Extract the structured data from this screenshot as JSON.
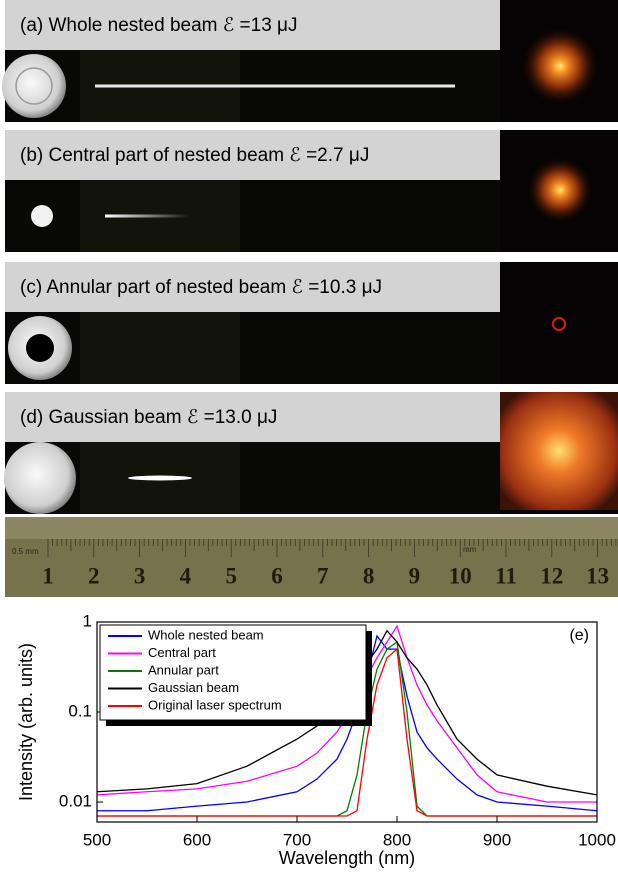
{
  "panels": [
    {
      "label": "(a) Whole nested beam ℰ =13 μJ"
    },
    {
      "label": "(b) Central part of nested beam ℰ =2.7 μJ"
    },
    {
      "label": "(c) Annular part of nested beam ℰ =10.3 μJ"
    },
    {
      "label": "(d) Gaussian beam ℰ =13.0 μJ"
    }
  ],
  "ruler": {
    "unit_small": "0.5 mm",
    "unit": "mm",
    "numbers": [
      "1",
      "2",
      "3",
      "4",
      "5",
      "6",
      "7",
      "8",
      "9",
      "10",
      "11",
      "12",
      "13"
    ]
  },
  "chart_data": {
    "type": "line",
    "annotation": "(e)",
    "x_label": "Wavelength (nm)",
    "y_label": "Intensity (arb. units)",
    "log_y": true,
    "legend": "upper-left",
    "x": [
      500,
      550,
      600,
      650,
      700,
      720,
      740,
      750,
      760,
      770,
      780,
      790,
      800,
      810,
      820,
      830,
      840,
      860,
      880,
      900,
      950,
      1000
    ],
    "xlim": [
      500,
      1000
    ],
    "xticks": [
      500,
      600,
      700,
      800,
      900,
      1000
    ],
    "ylim": [
      0.006,
      1
    ],
    "yticks": [
      0.01,
      0.1,
      1
    ],
    "series": [
      {
        "name": "Whole nested beam",
        "color": "#0000ff",
        "values": [
          0.008,
          0.008,
          0.009,
          0.01,
          0.013,
          0.018,
          0.03,
          0.05,
          0.1,
          0.25,
          0.7,
          0.5,
          0.5,
          0.15,
          0.06,
          0.04,
          0.03,
          0.018,
          0.012,
          0.01,
          0.009,
          0.008
        ]
      },
      {
        "name": "Central part",
        "color": "#ff00ff",
        "values": [
          0.012,
          0.013,
          0.014,
          0.017,
          0.025,
          0.035,
          0.06,
          0.09,
          0.15,
          0.25,
          0.4,
          0.6,
          0.9,
          0.4,
          0.2,
          0.12,
          0.08,
          0.04,
          0.02,
          0.013,
          0.01,
          0.01
        ]
      },
      {
        "name": "Annular part",
        "color": "#008000",
        "values": [
          0.007,
          0.007,
          0.007,
          0.007,
          0.007,
          0.007,
          0.007,
          0.008,
          0.02,
          0.1,
          0.3,
          0.5,
          0.6,
          0.1,
          0.009,
          0.007,
          0.007,
          0.007,
          0.007,
          0.007,
          0.007,
          0.007
        ]
      },
      {
        "name": "Gaussian beam",
        "color": "#000000",
        "values": [
          0.013,
          0.014,
          0.016,
          0.025,
          0.05,
          0.07,
          0.1,
          0.15,
          0.25,
          0.35,
          0.5,
          0.8,
          0.6,
          0.4,
          0.3,
          0.2,
          0.12,
          0.05,
          0.03,
          0.02,
          0.015,
          0.012
        ]
      },
      {
        "name": "Original laser spectrum",
        "color": "#ff0000",
        "values": [
          0.007,
          0.007,
          0.007,
          0.007,
          0.007,
          0.007,
          0.007,
          0.007,
          0.008,
          0.05,
          0.2,
          0.4,
          0.5,
          0.05,
          0.008,
          0.007,
          0.007,
          0.007,
          0.007,
          0.007,
          0.007,
          0.007
        ]
      }
    ]
  }
}
